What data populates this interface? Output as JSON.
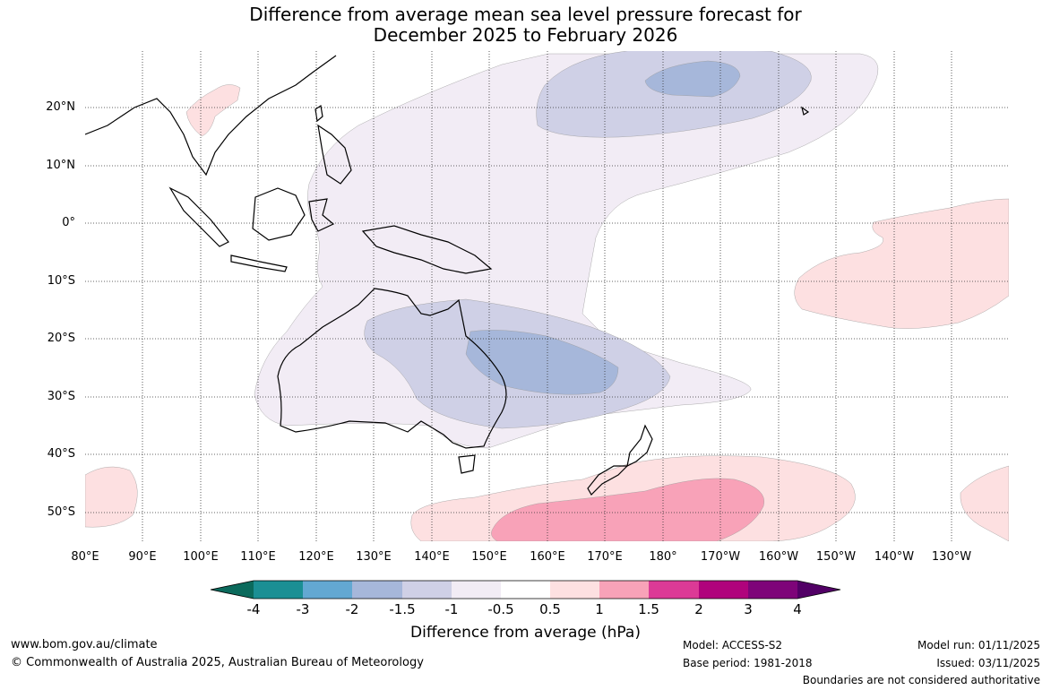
{
  "title": {
    "line1": "Difference from average mean sea level pressure forecast for",
    "line2": "December 2025 to February 2026"
  },
  "axes": {
    "lat_labels": [
      "20°N",
      "10°N",
      "0°",
      "10°S",
      "20°S",
      "30°S",
      "40°S",
      "50°S"
    ],
    "lon_labels": [
      "80°E",
      "90°E",
      "100°E",
      "110°E",
      "120°E",
      "130°E",
      "140°E",
      "150°E",
      "160°E",
      "170°E",
      "180°",
      "170°W",
      "160°W",
      "150°W",
      "140°W",
      "130°W"
    ]
  },
  "colorbar": {
    "ticks": [
      "-4",
      "-3",
      "-2",
      "-1.5",
      "-1",
      "-0.5",
      "0.5",
      "1",
      "1.5",
      "2",
      "3",
      "4"
    ],
    "colors": [
      "#0b6a5c",
      "#1b8f94",
      "#63a8d2",
      "#a6b7da",
      "#cfd0e6",
      "#f2ecf5",
      "#ffffff",
      "#fde0e1",
      "#f8a2b8",
      "#dc3a96",
      "#b0037c",
      "#7e0479",
      "#520066"
    ],
    "title": "Difference from average (hPa)"
  },
  "footer": {
    "website": "www.bom.gov.au/climate",
    "copyright": "© Commonwealth of Australia 2025, Australian Bureau of Meteorology",
    "model": "Model: ACCESS-S2",
    "base_period": "Base period: 1981-2018",
    "model_run": "Model run: 01/11/2025",
    "issued": "Issued: 03/11/2025",
    "disclaimer": "Boundaries are not considered authoritative"
  },
  "anomaly_regions": [
    {
      "name": "central-pacific-low",
      "anomaly": "-0.5 to -1",
      "color": "#f2ecf5"
    },
    {
      "name": "north-pacific-low",
      "anomaly": "-1 to -1.5",
      "color": "#cfd0e6"
    },
    {
      "name": "north-pacific-core",
      "anomaly": "-1.5 to -2",
      "color": "#a6b7da"
    },
    {
      "name": "australia-low",
      "anomaly": "-1 to -1.5",
      "color": "#cfd0e6"
    },
    {
      "name": "australia-core",
      "anomaly": "-1.5 to -2",
      "color": "#a6b7da"
    },
    {
      "name": "southern-ocean-high",
      "anomaly": "0.5 to 1",
      "color": "#fde0e1"
    },
    {
      "name": "southern-ocean-core",
      "anomaly": "1 to 1.5",
      "color": "#f8a2b8"
    },
    {
      "name": "east-pacific-high",
      "anomaly": "0.5 to 1",
      "color": "#fde0e1"
    },
    {
      "name": "indochina-high",
      "anomaly": "0.5 to 1",
      "color": "#fde0e1"
    }
  ]
}
